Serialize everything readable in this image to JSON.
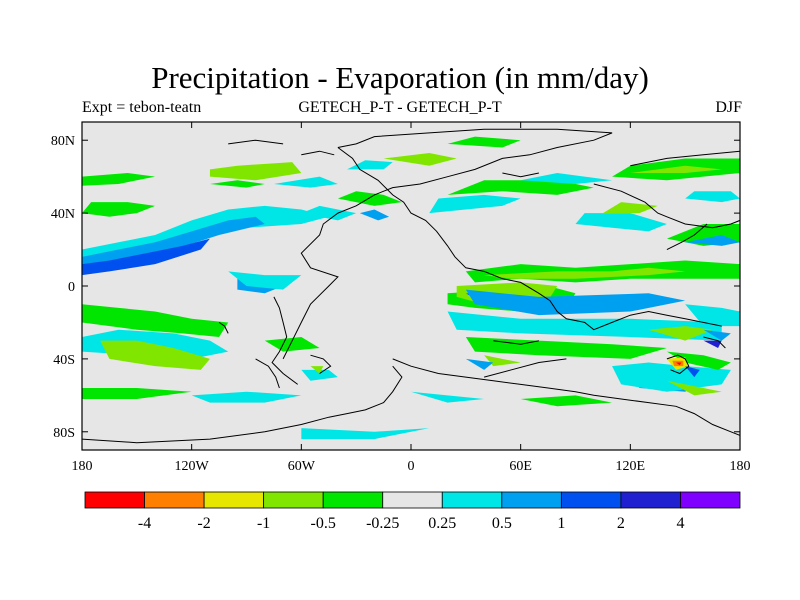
{
  "title": "Precipitation - Evaporation (in mm/day)",
  "subtitle": {
    "left": "Expt = tebon-teatn",
    "center": "GETECH_P-T - GETECH_P-T",
    "right": "DJF"
  },
  "map": {
    "projection": "cylindrical equidistant",
    "lon_range": [
      -180,
      180
    ],
    "lat_range": [
      -90,
      90
    ],
    "background_color": "#e6e6e6",
    "coastline_color": "#000000"
  },
  "axes": {
    "x_ticks": [
      {
        "value": -180,
        "label": "180"
      },
      {
        "value": -120,
        "label": "120W"
      },
      {
        "value": -60,
        "label": "60W"
      },
      {
        "value": 0,
        "label": "0"
      },
      {
        "value": 60,
        "label": "60E"
      },
      {
        "value": 120,
        "label": "120E"
      },
      {
        "value": 180,
        "label": "180"
      }
    ],
    "y_ticks": [
      {
        "value": 80,
        "label": "80N"
      },
      {
        "value": 40,
        "label": "40N"
      },
      {
        "value": 0,
        "label": "0"
      },
      {
        "value": -40,
        "label": "40S"
      },
      {
        "value": -80,
        "label": "80S"
      }
    ]
  },
  "colorbar": {
    "colors": [
      "#ff0000",
      "#ff8000",
      "#e6e600",
      "#80e600",
      "#00e600",
      "#e6e6e6",
      "#00e6e6",
      "#00a0f0",
      "#0050f0",
      "#2020d0",
      "#8000ff"
    ],
    "labels": [
      "-4",
      "-2",
      "-1",
      "-0.5",
      "-0.25",
      "0.25",
      "0.5",
      "1",
      "2",
      "4"
    ]
  }
}
